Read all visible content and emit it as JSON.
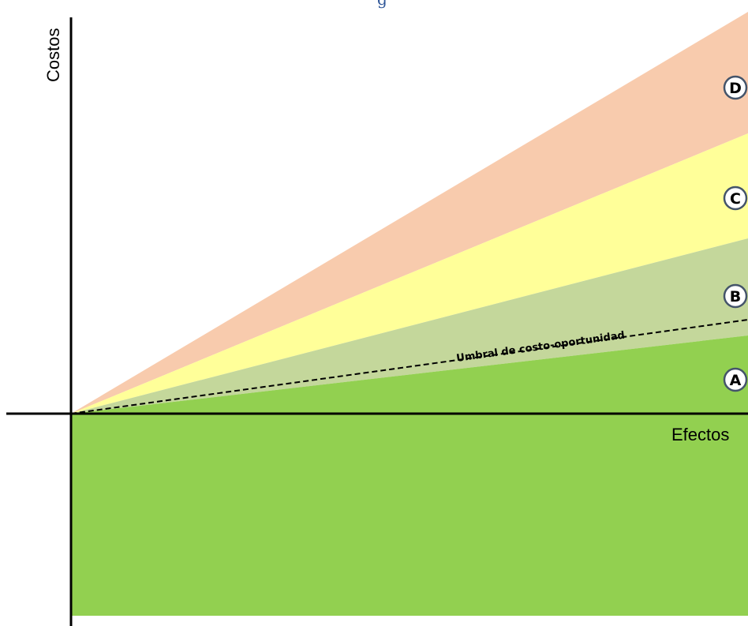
{
  "header": {
    "title": "g"
  },
  "axes": {
    "y_label": "Costos",
    "x_label": "Efectos"
  },
  "threshold": {
    "label": "Umbral de costo-oportunidad"
  },
  "zones": [
    {
      "id": "A",
      "label": "A",
      "color": "#92d050"
    },
    {
      "id": "B",
      "label": "B",
      "color": "#c4d79b"
    },
    {
      "id": "C",
      "label": "C",
      "color": "#ffff99"
    },
    {
      "id": "D",
      "label": "D",
      "color": "#f8cbad"
    }
  ],
  "colors": {
    "axis": "#000000",
    "badge_border": "#44546a",
    "badge_fill": "#ffffff",
    "title": "#2e5597"
  }
}
